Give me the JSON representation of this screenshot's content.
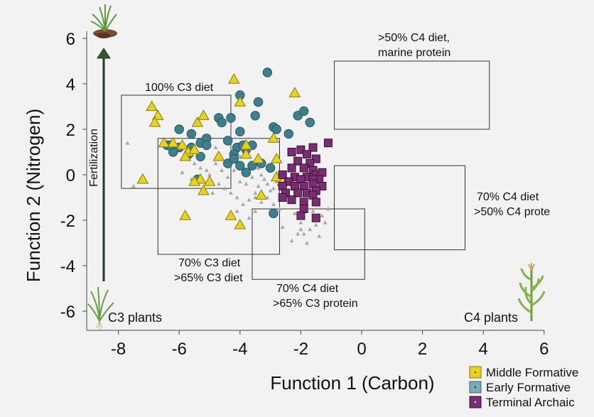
{
  "chart_data": {
    "type": "scatter",
    "xlabel": "Function 1 (Carbon)",
    "ylabel": "Function 2 (Nitrogen)",
    "xlim": [
      -9,
      6
    ],
    "ylim": [
      -7,
      6.5
    ],
    "xticks": [
      "-8",
      "-6",
      "-4",
      "-2",
      "0",
      "2",
      "4",
      "6"
    ],
    "yticks": [
      "6",
      "4",
      "2",
      "0",
      "-2",
      "-4",
      "-6"
    ],
    "grid": false,
    "legend_position": "bottom-right",
    "annotations": {
      "fertilization": "Fertilization",
      "c3_plants": "C3 plants",
      "c4_plants": "C4 plants"
    },
    "regions": [
      {
        "label_lines": [
          "100% C3 diet"
        ],
        "x0": -7.9,
        "x1": -4.3,
        "y0": -0.6,
        "y1": 3.5
      },
      {
        "label_lines": [
          "70% C3 diet",
          ">65% C3 diet"
        ],
        "x0": -6.7,
        "x1": -2.7,
        "y0": -3.5,
        "y1": 1.6
      },
      {
        "label_lines": [
          "70% C4 diet",
          ">65% C3 protein"
        ],
        "x0": -3.6,
        "x1": 0.1,
        "y0": -4.6,
        "y1": -1.5
      },
      {
        "label_lines": [
          ">50% C4 diet,",
          "marine protein"
        ],
        "x0": -0.9,
        "x1": 4.2,
        "y0": 2.0,
        "y1": 5.0
      },
      {
        "label_lines": [
          "70% C4 diet",
          ">50% C4 prote"
        ],
        "x0": -0.9,
        "x1": 3.4,
        "y0": -3.3,
        "y1": 0.4
      }
    ],
    "series": [
      {
        "name": "Middle Formative",
        "marker": "triangle",
        "color": "#e8d31c",
        "stroke": "#8a7a10",
        "points": [
          [
            -4.2,
            4.2
          ],
          [
            -2.2,
            3.6
          ],
          [
            -6.9,
            3.0
          ],
          [
            -6.7,
            2.6
          ],
          [
            -6.8,
            2.3
          ],
          [
            -5.4,
            2.3
          ],
          [
            -5.2,
            2.6
          ],
          [
            -4.0,
            3.2
          ],
          [
            -6.2,
            1.4
          ],
          [
            -6.5,
            1.4
          ],
          [
            -5.9,
            1.3
          ],
          [
            -5.7,
            1.0
          ],
          [
            -5.5,
            1.1
          ],
          [
            -5.8,
            0.8
          ],
          [
            -3.8,
            1.3
          ],
          [
            -2.9,
            1.6
          ],
          [
            -4.7,
            0.8
          ],
          [
            -2.8,
            0.7
          ],
          [
            -3.8,
            0.9
          ],
          [
            -2.8,
            -0.1
          ],
          [
            -3.4,
            0.7
          ],
          [
            -5.3,
            -0.2
          ],
          [
            -5.0,
            -0.3
          ],
          [
            -5.2,
            -0.7
          ],
          [
            -5.5,
            -0.3
          ],
          [
            -7.2,
            -0.2
          ],
          [
            -5.8,
            -1.8
          ],
          [
            -4.3,
            -1.8
          ],
          [
            -4.0,
            -2.2
          ],
          [
            -3.3,
            -0.9
          ],
          [
            -2.6,
            -0.3
          ]
        ]
      },
      {
        "name": "Early Formative",
        "marker": "circle",
        "color": "#3d7f8e",
        "stroke": "#1d4b55",
        "points": [
          [
            -3.1,
            4.5
          ],
          [
            -4.0,
            3.5
          ],
          [
            -3.4,
            3.2
          ],
          [
            -2.1,
            2.6
          ],
          [
            -1.7,
            2.3
          ],
          [
            -1.9,
            2.8
          ],
          [
            -4.3,
            2.5
          ],
          [
            -4.7,
            2.5
          ],
          [
            -4.6,
            2.3
          ],
          [
            -2.9,
            2.1
          ],
          [
            -2.8,
            2.0
          ],
          [
            -2.4,
            1.8
          ],
          [
            -3.5,
            2.6
          ],
          [
            -6.0,
            2.0
          ],
          [
            -5.6,
            1.8
          ],
          [
            -5.1,
            1.6
          ],
          [
            -4.0,
            1.9
          ],
          [
            -4.4,
            1.5
          ],
          [
            -4.1,
            1.2
          ],
          [
            -3.9,
            1.3
          ],
          [
            -4.2,
            0.9
          ],
          [
            -3.6,
            1.3
          ],
          [
            -3.8,
            1.1
          ],
          [
            -5.3,
            1.4
          ],
          [
            -6.0,
            1.2
          ],
          [
            -5.6,
            1.2
          ],
          [
            -5.1,
            1.3
          ],
          [
            -6.4,
            1.3
          ],
          [
            -6.2,
            1.0
          ],
          [
            -6.3,
            1.3
          ],
          [
            -5.7,
            0.9
          ],
          [
            -5.3,
            0.8
          ],
          [
            -4.4,
            0.5
          ],
          [
            -4.0,
            0.4
          ],
          [
            -3.6,
            0.4
          ],
          [
            -3.8,
            0.1
          ],
          [
            -4.2,
            0.7
          ],
          [
            -3.3,
            0.5
          ],
          [
            -5.4,
            -0.2
          ],
          [
            -3.0,
            0.3
          ],
          [
            -2.9,
            -1.7
          ]
        ]
      },
      {
        "name": "Terminal Archaic",
        "marker": "square",
        "color": "#7b2d74",
        "stroke": "#3a0f36",
        "points": [
          [
            -1.1,
            1.4
          ],
          [
            -1.6,
            1.2
          ],
          [
            -2.0,
            1.1
          ],
          [
            -2.3,
            1.0
          ],
          [
            -1.8,
            0.9
          ],
          [
            -1.5,
            0.7
          ],
          [
            -2.1,
            0.6
          ],
          [
            -1.7,
            0.5
          ],
          [
            -1.9,
            0.3
          ],
          [
            -1.6,
            0.2
          ],
          [
            -2.3,
            0.3
          ],
          [
            -2.6,
            0.0
          ],
          [
            -2.2,
            -0.1
          ],
          [
            -1.8,
            -0.1
          ],
          [
            -1.5,
            0.0
          ],
          [
            -1.3,
            0.1
          ],
          [
            -1.4,
            -0.2
          ],
          [
            -1.6,
            -0.2
          ],
          [
            -2.0,
            -0.2
          ],
          [
            -2.4,
            -0.3
          ],
          [
            -2.2,
            -0.5
          ],
          [
            -1.9,
            -0.5
          ],
          [
            -1.6,
            -0.4
          ],
          [
            -1.3,
            -0.5
          ],
          [
            -2.6,
            -0.5
          ],
          [
            -2.5,
            -0.8
          ],
          [
            -2.1,
            -0.8
          ],
          [
            -1.8,
            -0.8
          ],
          [
            -1.5,
            -0.7
          ],
          [
            -2.3,
            -1.1
          ],
          [
            -1.9,
            -1.2
          ],
          [
            -1.6,
            -0.9
          ],
          [
            -1.9,
            -1.5
          ],
          [
            -1.5,
            -1.2
          ],
          [
            -1.5,
            -1.9
          ],
          [
            -2.0,
            -1.8
          ],
          [
            -2.6,
            -1.0
          ]
        ]
      },
      {
        "name": "",
        "marker": "small-triangle",
        "color": "#a8a8a8",
        "stroke": "#a8a8a8",
        "points": [
          [
            -7.7,
            1.4
          ],
          [
            -7.5,
            -0.5
          ],
          [
            -6.4,
            1.2
          ],
          [
            -6.2,
            0.9
          ],
          [
            -5.5,
            0.5
          ],
          [
            -5.3,
            0.3
          ],
          [
            -5.1,
            0.2
          ],
          [
            -4.8,
            0.5
          ],
          [
            -4.6,
            0.2
          ],
          [
            -4.4,
            -0.1
          ],
          [
            -4.2,
            0.2
          ],
          [
            -4.0,
            -0.3
          ],
          [
            -3.8,
            -0.4
          ],
          [
            -3.6,
            -0.1
          ],
          [
            -3.4,
            0.3
          ],
          [
            -3.2,
            -0.2
          ],
          [
            -3.0,
            0.2
          ],
          [
            -2.9,
            -0.6
          ],
          [
            -2.8,
            -0.3
          ],
          [
            -2.6,
            0.1
          ],
          [
            -4.5,
            -0.6
          ],
          [
            -4.3,
            -0.8
          ],
          [
            -4.1,
            -1.0
          ],
          [
            -3.9,
            -1.3
          ],
          [
            -3.7,
            -1.1
          ],
          [
            -3.5,
            -0.8
          ],
          [
            -3.3,
            -1.2
          ],
          [
            -3.1,
            -1.0
          ],
          [
            -2.9,
            -1.3
          ],
          [
            -2.7,
            -1.5
          ],
          [
            -2.4,
            -1.2
          ],
          [
            -2.2,
            -1.7
          ],
          [
            -2.0,
            -2.1
          ],
          [
            -1.9,
            -2.6
          ],
          [
            -1.7,
            -2.4
          ],
          [
            -1.5,
            -2.2
          ],
          [
            -1.3,
            -1.8
          ],
          [
            -1.2,
            -2.1
          ],
          [
            -2.1,
            -2.6
          ],
          [
            -2.3,
            -2.9
          ],
          [
            -1.8,
            -3.0
          ],
          [
            -1.4,
            -2.7
          ],
          [
            -2.6,
            -2.3
          ],
          [
            -1.6,
            -1.6
          ],
          [
            -1.1,
            -1.5
          ],
          [
            -3.5,
            -1.6
          ],
          [
            -3.7,
            -1.9
          ],
          [
            -4.1,
            -1.6
          ],
          [
            -4.7,
            -0.4
          ],
          [
            -5.0,
            0.0
          ],
          [
            -4.9,
            -0.8
          ],
          [
            -3.3,
            0.0
          ],
          [
            -3.1,
            -0.4
          ],
          [
            -2.5,
            -0.6
          ],
          [
            -2.3,
            -0.3
          ],
          [
            -3.0,
            -0.7
          ],
          [
            -3.4,
            -0.5
          ],
          [
            -1.8,
            0.1
          ],
          [
            -1.6,
            -0.6
          ],
          [
            -2.2,
            0.0
          ],
          [
            -5.9,
            0.1
          ],
          [
            -5.6,
            -0.2
          ],
          [
            -4.8,
            1.2
          ],
          [
            -4.0,
            0.8
          ],
          [
            -2.0,
            -2.4
          ],
          [
            -3.5,
            -1.0
          ]
        ]
      }
    ]
  },
  "legend": [
    {
      "label": "Middle Formative",
      "color": "#e8d31c"
    },
    {
      "label": "Early Formative",
      "color": "#7fa9b5"
    },
    {
      "label": "Terminal Archaic",
      "color": "#7b2d74"
    }
  ]
}
